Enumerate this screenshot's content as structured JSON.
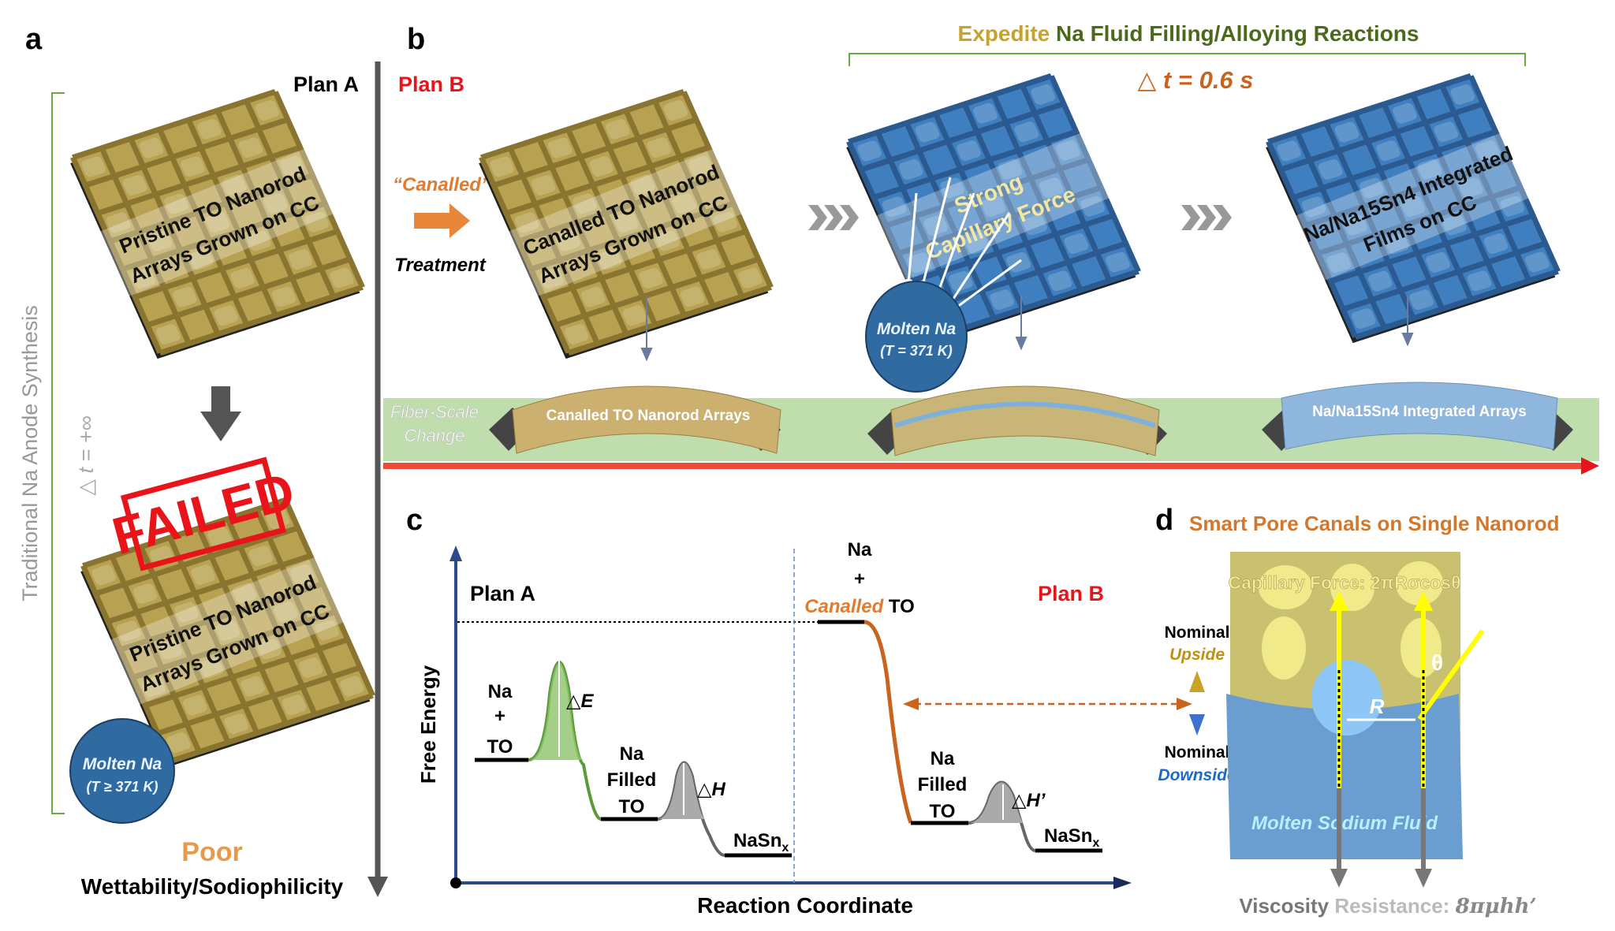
{
  "colors": {
    "gold": "#c8b25a",
    "blue": "#3f7fbf",
    "red": "#e8141a",
    "orange": "#e07b2f",
    "green": "#6aaa3e",
    "dark_green": "#4a5a1a",
    "yellow": "#ffff00",
    "gray": "#777777"
  },
  "panel_a": {
    "label": "a",
    "plan": "Plan A",
    "side_title": "Traditional Na Anode Synthesis",
    "delta_t": "△ t = +∞",
    "mesh_top_text": [
      "Pristine TO Nanorod",
      "Arrays Grown on CC"
    ],
    "failed_stamp": "FAILED",
    "mesh_bottom_text": [
      "Pristine TO Nanorod",
      "Arrays Grown on CC"
    ],
    "sphere_text": [
      "Molten Na",
      "(T ≥ 371 K)"
    ],
    "result_word": "Poor",
    "result_text": "Wettability/Sodiophilicity"
  },
  "panel_b": {
    "label": "b",
    "plan": "Plan B",
    "title_part1": "Expedite",
    "title_part2": "Na Fluid Filling/Alloying Reactions",
    "delta_t": "△ t = 0.6 s",
    "treatment_top": "“Canalled”",
    "treatment_bottom": "Treatment",
    "mesh1_text": [
      "Canalled TO Nanorod",
      "Arrays Grown on CC"
    ],
    "mesh2_text": [
      "Strong",
      "Capillary Force"
    ],
    "sphere_text": [
      "Molten Na",
      "(T = 371 K)"
    ],
    "mesh3_text": [
      "Na/Na15Sn4 Integrated",
      "Films on CC"
    ],
    "fiber_scale": [
      "Fiber-Scale",
      "Change"
    ],
    "fiber1_label": "Canalled TO Nanorod Arrays",
    "fiber3_label": "Na/Na15Sn4 Integrated Arrays"
  },
  "panel_c": {
    "label": "c",
    "ylabel": "Free Energy",
    "xlabel": "Reaction Coordinate",
    "plan_a": "Plan A",
    "plan_b": "Plan B",
    "a_start": [
      "Na",
      "+",
      "TO"
    ],
    "a_barrier": "△E",
    "a_mid": [
      "Na",
      "Filled",
      "TO"
    ],
    "a_hump": "△H",
    "a_end": "NaSn",
    "b_start": [
      "Na",
      "+"
    ],
    "b_start_canalled": "Canalled",
    "b_start_to": " TO",
    "b_mid": [
      "Na",
      "Filled",
      "TO"
    ],
    "b_hump": "△H’",
    "b_end": "NaSn",
    "subscript_x": "x"
  },
  "panel_d": {
    "label": "d",
    "title": "Smart Pore Canals on Single Nanorod",
    "nominal_up": [
      "Nominal",
      "Upside"
    ],
    "nominal_down": [
      "Nominal",
      "Downside"
    ],
    "capillary": "Capillary Force: 2πRσcosθ",
    "theta": "θ",
    "radius": "R",
    "fluid": "Molten Sodium Fluid",
    "viscosity_word1": "Viscosity",
    "viscosity_word2": "Resistance:",
    "viscosity_formula": "8πμhh’"
  }
}
